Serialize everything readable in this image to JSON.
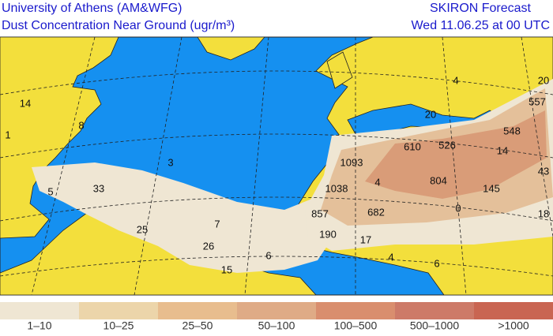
{
  "header": {
    "title": "University of Athens (AM&WFG)",
    "subtitle": "Dust Concentration Near Ground (ugr/m³)",
    "model": "SKIRON Forecast",
    "valid_time": "Wed 11.06.25 at 00 UTC"
  },
  "legend": {
    "items": [
      {
        "label": "1–10",
        "color": "#efe6d3"
      },
      {
        "label": "10–25",
        "color": "#ecd5aa"
      },
      {
        "label": "25–50",
        "color": "#e8bd8e"
      },
      {
        "label": "50–100",
        "color": "#dfab86"
      },
      {
        "label": "100–500",
        "color": "#d98e6e"
      },
      {
        "label": "500–1000",
        "color": "#cd7a68"
      },
      {
        "label": ">1000",
        "color": "#c96552"
      }
    ]
  },
  "map": {
    "labels": [
      "20",
      "557",
      "548",
      "14",
      "43",
      "145",
      "18",
      "0",
      "804",
      "526",
      "610",
      "20",
      "4",
      "1093",
      "1038",
      "4",
      "857",
      "682",
      "190",
      "17",
      "6",
      "4",
      "6",
      "15",
      "26",
      "7",
      "25",
      "33",
      "5",
      "3",
      "8",
      "14",
      "1"
    ]
  }
}
